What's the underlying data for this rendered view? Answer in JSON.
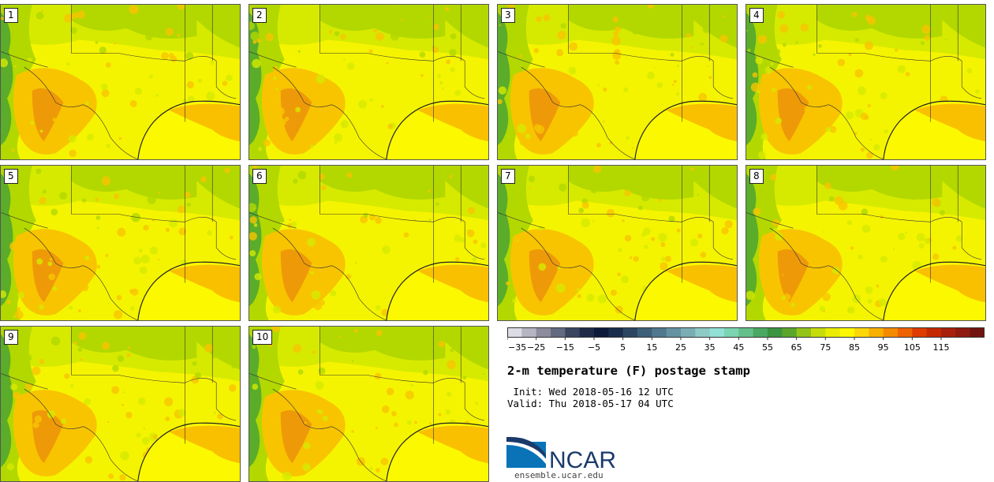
{
  "panels": [
    {
      "label": "1"
    },
    {
      "label": "2"
    },
    {
      "label": "3"
    },
    {
      "label": "4"
    },
    {
      "label": "5"
    },
    {
      "label": "6"
    },
    {
      "label": "7"
    },
    {
      "label": "8"
    },
    {
      "label": "9"
    },
    {
      "label": "10"
    }
  ],
  "colorbar": {
    "ticks": [
      "−35",
      "−25",
      "−15",
      "−5",
      "5",
      "15",
      "25",
      "35",
      "45",
      "55",
      "65",
      "75",
      "85",
      "95",
      "105",
      "115"
    ],
    "colors": [
      "#dcdce4",
      "#b4b4c2",
      "#8c8c9e",
      "#626a80",
      "#3a4660",
      "#1e2a48",
      "#0e1a3a",
      "#1a2d4c",
      "#2c4662",
      "#3e6078",
      "#50788e",
      "#6692a2",
      "#7aaeb4",
      "#8ecac6",
      "#92e0d6",
      "#7cd4b2",
      "#64c08a",
      "#4aa862",
      "#3a9440",
      "#5aa62a",
      "#92c41a",
      "#c6dc0c",
      "#eaec02",
      "#fdf800",
      "#fcd808",
      "#f8b000",
      "#f48a00",
      "#ee6200",
      "#de3c00",
      "#c42a00",
      "#a8200c",
      "#8e1a10",
      "#721410"
    ]
  },
  "title": "2-m temperature (F) postage stamp",
  "init": " Init: Wed 2018-05-16 12 UTC",
  "valid": "Valid: Thu 2018-05-17 04 UTC",
  "logo": {
    "text": "NCAR",
    "url": "ensemble.ucar.edu",
    "blue": "#0a73b8",
    "dark": "#1a3a6a"
  },
  "map_colors": {
    "yellow": "#f5f400",
    "green_light": "#d6ea00",
    "green_mid": "#b2d800",
    "green_dark": "#5aac2a",
    "orange": "#f8c400",
    "dark_orange": "#ee9a08",
    "ocean": "#fcf800",
    "gulf_orange": "#f9c000"
  }
}
